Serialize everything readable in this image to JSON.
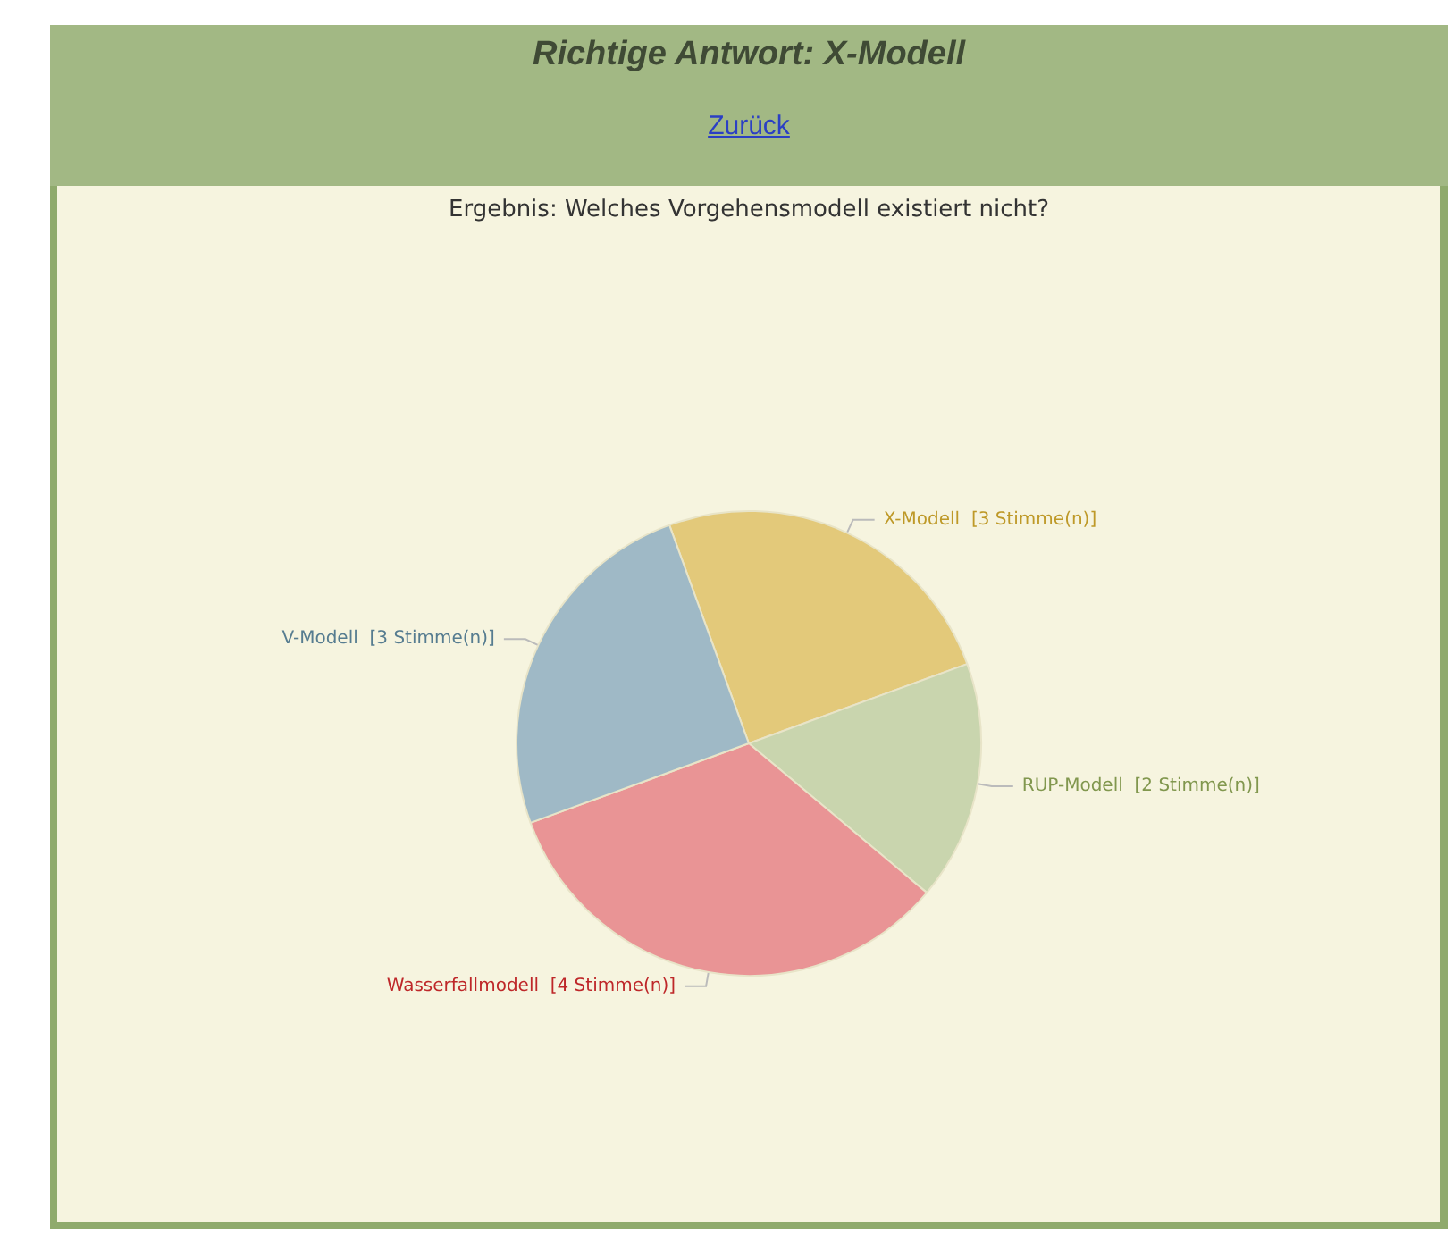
{
  "chart_data": {
    "type": "pie",
    "title": "Richtige Antwort: X-Modell",
    "subtitle": "Ergebnis: Welches Vorgehensmodell existiert nicht?",
    "annotations": [
      "Zurück"
    ],
    "categories": [
      "X-Modell",
      "RUP-Modell",
      "Wasserfallmodell",
      "V-Modell"
    ],
    "values": [
      3,
      2,
      4,
      3
    ],
    "value_labels": [
      "[3 Stimme(n)]",
      "[2 Stimme(n)]",
      "[4 Stimme(n)]",
      "[3 Stimme(n)]"
    ],
    "colors": [
      "#e3c97a",
      "#c9d5ae",
      "#e99495",
      "#9fb9c6"
    ],
    "legend": false
  }
}
